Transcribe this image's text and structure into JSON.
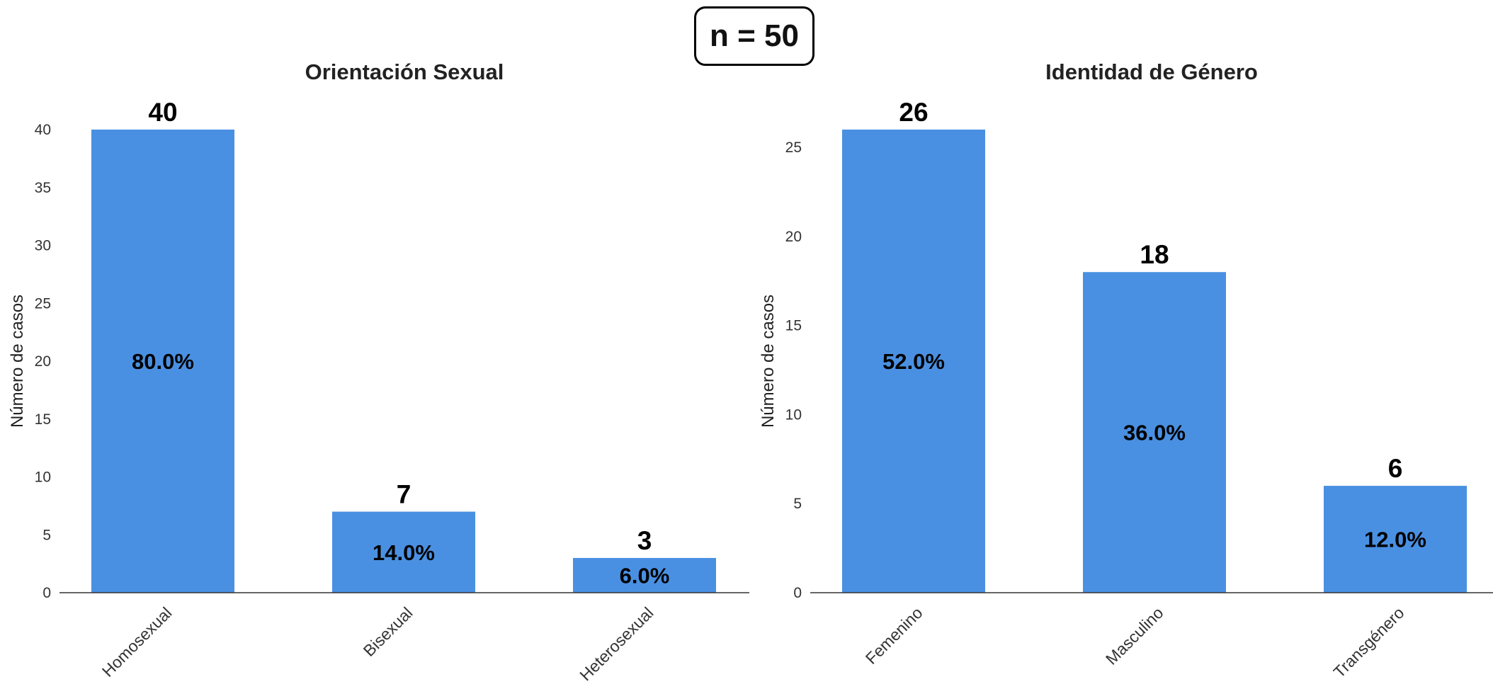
{
  "sample_label": "n = 50",
  "colors": {
    "bar": "#4a90e2",
    "axis": "#333333",
    "text": "#000000"
  },
  "chart_data": [
    {
      "type": "bar",
      "title": "Orientación Sexual",
      "ylabel": "Número de casos",
      "xlabel": "",
      "categories": [
        "Homosexual",
        "Bisexual",
        "Heterosexual"
      ],
      "values": [
        40,
        7,
        3
      ],
      "percent_labels": [
        "80.0%",
        "14.0%",
        "6.0%"
      ],
      "ylim": [
        0,
        40
      ],
      "yticks": [
        0,
        5,
        10,
        15,
        20,
        25,
        30,
        35,
        40
      ],
      "grid": false,
      "legend": "none"
    },
    {
      "type": "bar",
      "title": "Identidad de Género",
      "ylabel": "Número de casos",
      "xlabel": "",
      "categories": [
        "Femenino",
        "Masculino",
        "Transgénero"
      ],
      "values": [
        26,
        18,
        6
      ],
      "percent_labels": [
        "52.0%",
        "36.0%",
        "12.0%"
      ],
      "ylim": [
        0,
        26
      ],
      "yticks": [
        0,
        5,
        10,
        15,
        20,
        25
      ],
      "grid": false,
      "legend": "none"
    }
  ]
}
